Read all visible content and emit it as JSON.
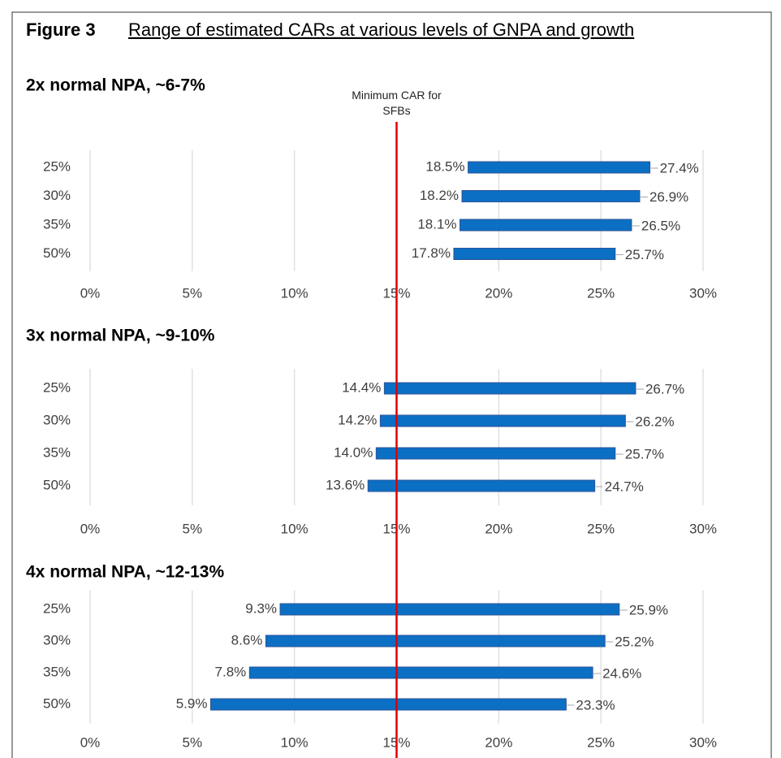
{
  "figure_label": "Figure 3",
  "title": "Range of estimated CARs at various levels of GNPA and growth",
  "reference_line": {
    "label": "Minimum CAR for SFBs",
    "value": 15,
    "color": "#e00000"
  },
  "chart_data": [
    {
      "type": "range_bar",
      "title": "2x normal NPA, ~6-7%",
      "categories": [
        "25%",
        "30%",
        "35%",
        "50%"
      ],
      "series": [
        {
          "values": [
            18.5,
            18.2,
            18.1,
            17.8
          ],
          "value_labels": [
            "18.5%",
            "18.2%",
            "18.1%",
            "17.8%"
          ]
        },
        {
          "values": [
            27.4,
            26.9,
            26.5,
            25.7
          ],
          "value_labels": [
            "27.4%",
            "26.9%",
            "26.5%",
            "25.7%"
          ]
        }
      ],
      "color": "#0b6fc4",
      "grid": true,
      "xlim": [
        0,
        30
      ],
      "xticks": [
        {
          "value": 0,
          "label": "0%"
        },
        {
          "value": 5,
          "label": "5%"
        },
        {
          "value": 10,
          "label": "10%"
        },
        {
          "value": 15,
          "label": "15%"
        },
        {
          "value": 20,
          "label": "20%"
        },
        {
          "value": 25,
          "label": "25%"
        },
        {
          "value": 30,
          "label": "30%"
        }
      ]
    },
    {
      "type": "range_bar",
      "title": "3x normal NPA, ~9-10%",
      "categories": [
        "25%",
        "30%",
        "35%",
        "50%"
      ],
      "series": [
        {
          "values": [
            14.4,
            14.2,
            14.0,
            13.6
          ],
          "value_labels": [
            "14.4%",
            "14.2%",
            "14.0%",
            "13.6%"
          ]
        },
        {
          "values": [
            26.7,
            26.2,
            25.7,
            24.7
          ],
          "value_labels": [
            "26.7%",
            "26.2%",
            "25.7%",
            "24.7%"
          ]
        }
      ],
      "color": "#0b6fc4",
      "grid": true,
      "xlim": [
        0,
        30
      ],
      "xticks": [
        {
          "value": 0,
          "label": "0%"
        },
        {
          "value": 5,
          "label": "5%"
        },
        {
          "value": 10,
          "label": "10%"
        },
        {
          "value": 15,
          "label": "15%"
        },
        {
          "value": 20,
          "label": "20%"
        },
        {
          "value": 25,
          "label": "25%"
        },
        {
          "value": 30,
          "label": "30%"
        }
      ]
    },
    {
      "type": "range_bar",
      "title": "4x normal NPA, ~12-13%",
      "categories": [
        "25%",
        "30%",
        "35%",
        "50%"
      ],
      "series": [
        {
          "values": [
            9.3,
            8.6,
            7.8,
            5.9
          ],
          "value_labels": [
            "9.3%",
            "8.6%",
            "7.8%",
            "5.9%"
          ]
        },
        {
          "values": [
            25.9,
            25.2,
            24.6,
            23.3
          ],
          "value_labels": [
            "25.9%",
            "25.2%",
            "24.6%",
            "23.3%"
          ]
        }
      ],
      "color": "#0b6fc4",
      "grid": true,
      "xlim": [
        0,
        30
      ],
      "xticks": [
        {
          "value": 0,
          "label": "0%"
        },
        {
          "value": 5,
          "label": "5%"
        },
        {
          "value": 10,
          "label": "10%"
        },
        {
          "value": 15,
          "label": "15%"
        },
        {
          "value": 20,
          "label": "20%"
        },
        {
          "value": 25,
          "label": "25%"
        },
        {
          "value": 30,
          "label": "30%"
        }
      ]
    }
  ]
}
